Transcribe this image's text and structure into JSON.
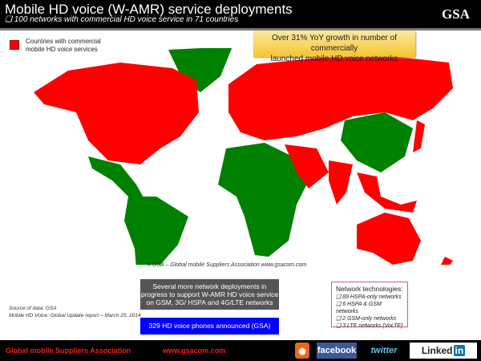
{
  "header": {
    "title": "Mobile HD voice (W-AMR) service deployments",
    "subtitle": "❑ 100 networks with commercial HD voice service in 71 countries",
    "logo": "GSA"
  },
  "legend": {
    "label_line1": "Countries with commercial",
    "label_line2": "mobile HD voice services",
    "color": "#ff0000"
  },
  "growth": {
    "line1": "Over 31% YoY growth in number of commercially",
    "line2": "launched mobile HD voice networks"
  },
  "map": {
    "copyright": "© GSA – Global mobile Suppliers Association www.gsacom.com",
    "deployed_color": "#ff0000",
    "other_color": "#008000"
  },
  "progress_note": "Several more network deployments in progress to support W-AMR HD voice service on GSM, 3G/ HSPA and 4G/LTE networks",
  "phones_note": "329 HD voice phones announced (GSA)",
  "source": {
    "line1": "Source of data: GSA",
    "line2": "Mobile HD Voice: Global Update report – March 25, 2014"
  },
  "tech": {
    "title": "Network technologies:",
    "items": [
      "❑  89 HSPA-only networks",
      "❑  6 HSPA & GSM networks",
      "❑  2 GSM-only networks",
      "❑  3 LTE networks (VoLTE)"
    ]
  },
  "footer": {
    "org": "Global mobile Suppliers Association",
    "url": "www.gsacom.com",
    "facebook": "facebook",
    "twitter": "twitter",
    "linkedin": "Linked",
    "linkedin_in": "in"
  }
}
